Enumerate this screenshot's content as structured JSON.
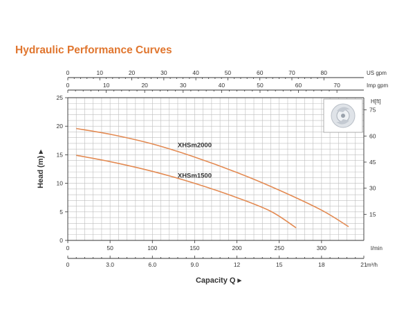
{
  "page": {
    "title": "Hydraulic Performance Curves"
  },
  "chart_data": {
    "type": "line",
    "title": "Hydraulic Performance Curves",
    "xlabel": "Capacity Q",
    "ylabel": "Head (m)",
    "y_right_label": "H[ft]",
    "xlim": [
      0,
      350
    ],
    "ylim": [
      0,
      25
    ],
    "x_unit": "l/min",
    "x_ticks": [
      0,
      50,
      100,
      150,
      200,
      250,
      300
    ],
    "y_ticks": [
      0,
      5,
      10,
      15,
      20,
      25
    ],
    "y_right_ticks": [
      15,
      30,
      45,
      60,
      75
    ],
    "y_right_tick_labels": [
      "15",
      "30",
      "45",
      "60",
      "75"
    ],
    "secondary_x_axes": [
      {
        "unit": "US gpm",
        "position": "top",
        "ticks": [
          0,
          10,
          20,
          30,
          40,
          50,
          60,
          70,
          80
        ],
        "factor": 3.785
      },
      {
        "unit": "Imp gpm",
        "position": "top",
        "ticks": [
          0,
          10,
          20,
          30,
          40,
          50,
          60,
          70
        ],
        "factor": 4.546
      },
      {
        "unit": "m³/h",
        "position": "bottom",
        "ticks": [
          0,
          3,
          6,
          9,
          12,
          15,
          18,
          21
        ],
        "tick_labels": [
          "0",
          "3.0",
          "6.0",
          "9.0",
          "12",
          "15",
          "18",
          "21"
        ],
        "factor": 16.667
      }
    ],
    "grid": true,
    "series": [
      {
        "name": "XHSm2000",
        "color": "#e38a52",
        "x": [
          10,
          50,
          100,
          150,
          200,
          250,
          300,
          332
        ],
        "y": [
          19.6,
          18.6,
          16.9,
          14.6,
          11.9,
          8.8,
          5.3,
          2.4
        ]
      },
      {
        "name": "XHSm1500",
        "color": "#e38a52",
        "x": [
          10,
          50,
          100,
          150,
          200,
          240,
          270
        ],
        "y": [
          14.9,
          13.8,
          12.1,
          10.0,
          7.5,
          5.1,
          2.2
        ]
      }
    ]
  }
}
